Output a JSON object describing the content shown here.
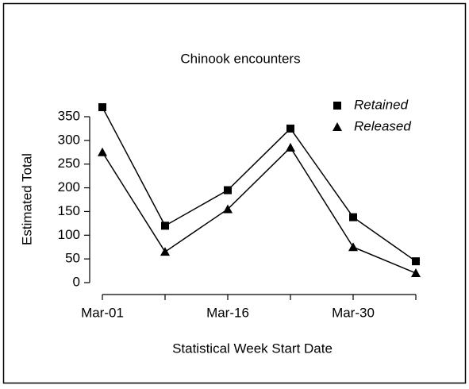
{
  "chart_data": {
    "type": "line",
    "title": "Chinook encounters",
    "x_label": "Statistical Week Start Date",
    "y_label": "Estimated Total",
    "categories": [
      "Mar-01",
      null,
      "Mar-16",
      null,
      "Mar-30",
      null
    ],
    "series": [
      {
        "name": "Retained",
        "color": "#000000",
        "marker": "square",
        "values": [
          370,
          120,
          195,
          325,
          138,
          45
        ]
      },
      {
        "name": "Released",
        "color": "#000000",
        "marker": "triangle",
        "values": [
          275,
          65,
          155,
          285,
          75,
          20
        ]
      }
    ],
    "ylim": [
      0,
      350
    ],
    "yticks": [
      0,
      50,
      100,
      150,
      200,
      250,
      300,
      350
    ],
    "legend": "top-right",
    "grid": false
  }
}
